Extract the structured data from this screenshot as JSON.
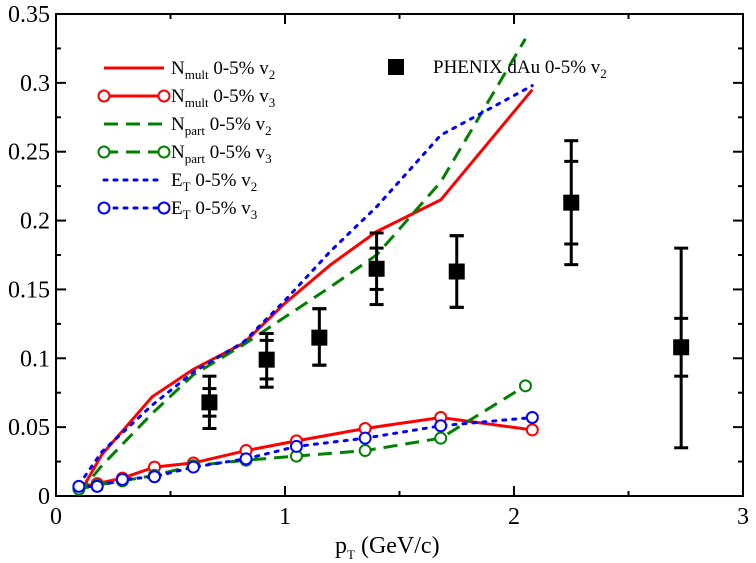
{
  "chart_data": {
    "type": "line",
    "title": "",
    "xlabel": "p",
    "xlabel_sub": "T",
    "xlabel_unit": " (GeV/c)",
    "ylabel": "",
    "xlim": [
      0,
      3
    ],
    "ylim": [
      0,
      0.35
    ],
    "xticks": [
      0,
      1,
      2,
      3
    ],
    "xtick_labels": [
      "0",
      "1",
      "2",
      "3"
    ],
    "yticks": [
      0,
      0.05,
      0.1,
      0.15,
      0.2,
      0.25,
      0.3,
      0.35
    ],
    "ytick_labels": [
      "0",
      "0.05",
      "0.1",
      "0.15",
      "0.2",
      "0.25",
      "0.3",
      "0.35"
    ],
    "grid": false,
    "series": [
      {
        "name": "N_mult 0-5% v_2",
        "label_main": "N",
        "label_sub": "mult",
        "label_mid": " 0-5% v",
        "label_sub2": "2",
        "color": "#ff0000",
        "style": "solid",
        "marker": "none",
        "x": [
          0.1,
          0.2,
          0.42,
          0.6,
          0.82,
          1.0,
          1.2,
          1.4,
          1.68,
          2.08
        ],
        "y": [
          0.001,
          0.03,
          0.072,
          0.092,
          0.111,
          0.14,
          0.168,
          0.192,
          0.215,
          0.295
        ]
      },
      {
        "name": "N_mult 0-5% v_3",
        "label_main": "N",
        "label_sub": "mult",
        "label_mid": " 0-5% v",
        "label_sub2": "3",
        "color": "#ff0000",
        "style": "solid",
        "marker": "circle",
        "x": [
          0.1,
          0.18,
          0.29,
          0.43,
          0.6,
          0.83,
          1.05,
          1.35,
          1.68,
          2.08
        ],
        "y": [
          0.006,
          0.009,
          0.013,
          0.021,
          0.024,
          0.033,
          0.04,
          0.049,
          0.057,
          0.048
        ]
      },
      {
        "name": "N_part 0-5% v_2",
        "label_main": "N",
        "label_sub": "part",
        "label_mid": " 0-5% v",
        "label_sub2": "2",
        "color": "#008000",
        "style": "dashed",
        "marker": "none",
        "x": [
          0.1,
          0.2,
          0.42,
          0.6,
          0.82,
          1.0,
          1.2,
          1.4,
          1.68,
          2.05
        ],
        "y": [
          0.002,
          0.022,
          0.06,
          0.088,
          0.11,
          0.13,
          0.152,
          0.175,
          0.228,
          0.332
        ]
      },
      {
        "name": "N_part 0-5% v_3",
        "label_main": "N",
        "label_sub": "part",
        "label_mid": " 0-5% v",
        "label_sub2": "3",
        "color": "#008000",
        "style": "dashed",
        "marker": "circle",
        "x": [
          0.1,
          0.18,
          0.29,
          0.43,
          0.6,
          0.83,
          1.05,
          1.35,
          1.68,
          2.05
        ],
        "y": [
          0.005,
          0.008,
          0.011,
          0.015,
          0.022,
          0.026,
          0.029,
          0.033,
          0.042,
          0.08
        ]
      },
      {
        "name": "E_T 0-5% v_2",
        "label_main": "E",
        "label_sub": "T",
        "label_mid": " 0-5% v",
        "label_sub2": "2",
        "color": "#0000ff",
        "style": "dotted",
        "marker": "none",
        "x": [
          0.1,
          0.2,
          0.42,
          0.6,
          0.82,
          1.0,
          1.2,
          1.4,
          1.68,
          2.08
        ],
        "y": [
          0.008,
          0.032,
          0.066,
          0.09,
          0.112,
          0.142,
          0.178,
          0.21,
          0.262,
          0.298
        ]
      },
      {
        "name": "E_T 0-5% v_3",
        "label_main": "E",
        "label_sub": "T",
        "label_mid": " 0-5% v",
        "label_sub2": "3",
        "color": "#0000ff",
        "style": "dotted",
        "marker": "circle",
        "x": [
          0.1,
          0.18,
          0.29,
          0.43,
          0.6,
          0.83,
          1.05,
          1.35,
          1.68,
          2.08
        ],
        "y": [
          0.007,
          0.007,
          0.012,
          0.014,
          0.021,
          0.027,
          0.036,
          0.042,
          0.051,
          0.057
        ]
      }
    ],
    "data_points": {
      "name": "PHENIX dAu 0-5% v_2",
      "label_main": "PHENIX dAu 0-5% v",
      "label_sub": "2",
      "color": "#000000",
      "marker": "square",
      "points": [
        {
          "x": 0.67,
          "y": 0.068,
          "stat": [
            0.058,
            0.078
          ],
          "sys": [
            0.049,
            0.087
          ]
        },
        {
          "x": 0.92,
          "y": 0.099,
          "stat": [
            0.085,
            0.113
          ],
          "sys": [
            0.079,
            0.118
          ]
        },
        {
          "x": 1.15,
          "y": 0.115,
          "stat": [
            0.095,
            0.136
          ],
          "sys": [
            0.095,
            0.136
          ]
        },
        {
          "x": 1.4,
          "y": 0.165,
          "stat": [
            0.15,
            0.18
          ],
          "sys": [
            0.139,
            0.191
          ]
        },
        {
          "x": 1.75,
          "y": 0.163,
          "stat": [
            0.137,
            0.189
          ],
          "sys": [
            0.137,
            0.189
          ]
        },
        {
          "x": 2.25,
          "y": 0.213,
          "stat": [
            0.183,
            0.243
          ],
          "sys": [
            0.168,
            0.258
          ]
        },
        {
          "x": 2.73,
          "y": 0.108,
          "stat": [
            0.087,
            0.129
          ],
          "sys": [
            0.035,
            0.18
          ]
        }
      ]
    }
  }
}
